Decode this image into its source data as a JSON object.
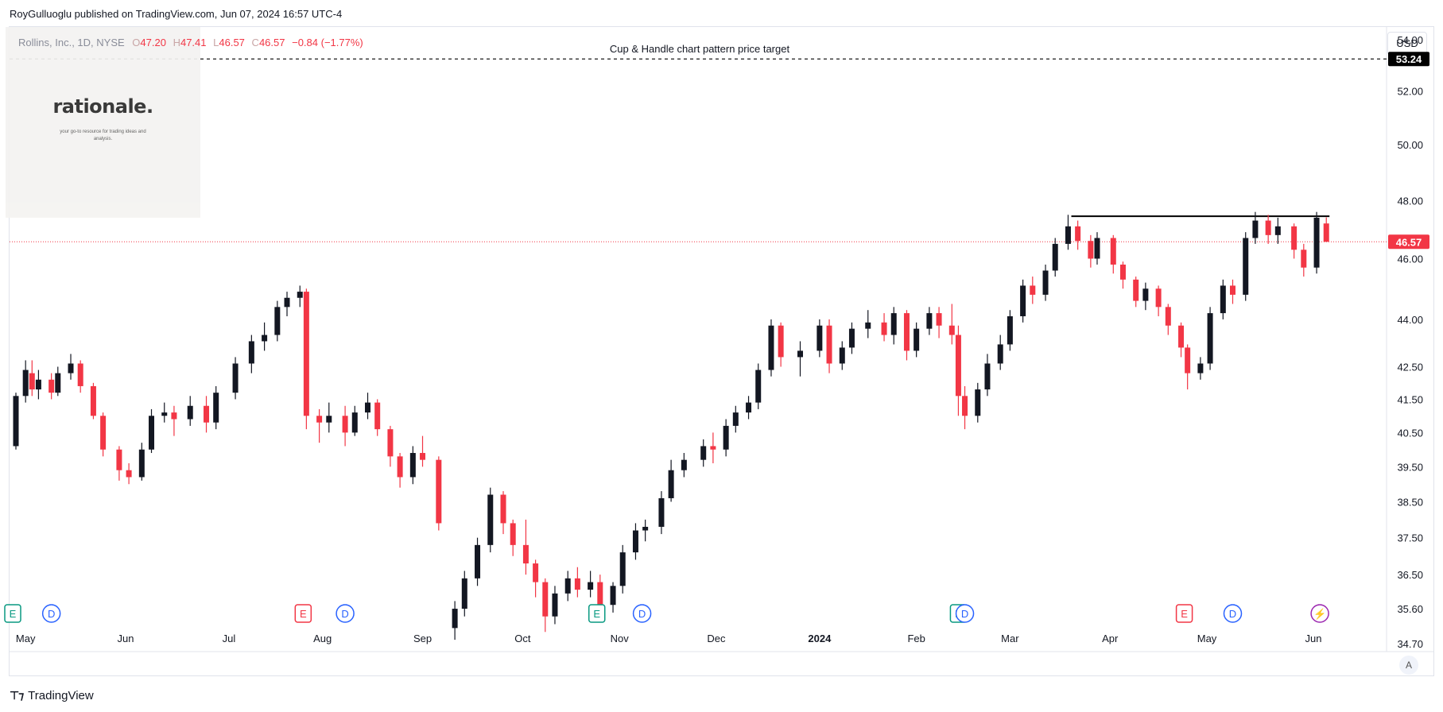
{
  "header": {
    "published_by": "RoyGulluoglu published on TradingView.com, Jun 07, 2024 16:57 UTC-4"
  },
  "legend": {
    "symbol": "Rollins, Inc., 1D, NYSE",
    "open_label": "O",
    "open": "47.20",
    "high_label": "H",
    "high": "47.41",
    "low_label": "L",
    "low": "46.57",
    "close_label": "C",
    "close": "46.57",
    "change": "−0.84 (−1.77%)"
  },
  "logo": {
    "word": "rationale.",
    "tagline": "your go-to resource for trading ideas and analysis."
  },
  "currency": "USD",
  "auto_label": "A",
  "footer": {
    "brand": "TradingView"
  },
  "colors": {
    "up": "#131722",
    "down": "#f23645",
    "price_line": "#f23645",
    "target_label_bg": "#000000"
  },
  "chart_data": {
    "type": "candlestick",
    "title": "Rollins, Inc., 1D, NYSE",
    "ylabel": "USD",
    "y_scale": "log",
    "ylim": [
      34.5,
      54.5
    ],
    "y_ticks": [
      "54.00",
      "52.00",
      "50.00",
      "48.00",
      "46.00",
      "44.00",
      "42.50",
      "41.50",
      "40.50",
      "39.50",
      "38.50",
      "37.50",
      "36.50",
      "35.60",
      "34.70"
    ],
    "x_labels": [
      "May",
      "Jun",
      "Jul",
      "Aug",
      "Sep",
      "Oct",
      "Nov",
      "Dec",
      "2024",
      "Feb",
      "Mar",
      "Apr",
      "May",
      "Jun"
    ],
    "x_label_dates": [
      "2023-05-01",
      "2023-06-01",
      "2023-07-03",
      "2023-08-01",
      "2023-09-01",
      "2023-10-02",
      "2023-11-01",
      "2023-12-01",
      "2024-01-02",
      "2024-02-01",
      "2024-03-01",
      "2024-04-01",
      "2024-05-01",
      "2024-06-03"
    ],
    "x_range": [
      "2023-04-28",
      "2024-06-20"
    ],
    "annotations": [
      {
        "type": "horizontal_line",
        "label": "Cup & Handle chart pattern price target",
        "value": 53.24,
        "style": "dashed"
      },
      {
        "type": "segment",
        "label": "",
        "value": 47.45,
        "from": "2024-03-20",
        "to": "2024-06-07"
      }
    ],
    "price_labels": [
      {
        "value": 53.24,
        "text": "53.24"
      },
      {
        "value": 46.57,
        "text": "46.57"
      }
    ],
    "event_markers": [
      {
        "kind": "E",
        "date": "2023-04-27",
        "color": "#089981"
      },
      {
        "kind": "D",
        "date": "2023-05-09",
        "color": "#2962ff"
      },
      {
        "kind": "E",
        "date": "2023-07-26",
        "color": "#f23645"
      },
      {
        "kind": "D",
        "date": "2023-08-08",
        "color": "#2962ff"
      },
      {
        "kind": "E",
        "date": "2023-10-25",
        "color": "#089981"
      },
      {
        "kind": "D",
        "date": "2023-11-08",
        "color": "#2962ff"
      },
      {
        "kind": "E",
        "date": "2024-02-14",
        "color": "#089981"
      },
      {
        "kind": "D",
        "date": "2024-02-16",
        "color": "#2962ff"
      },
      {
        "kind": "E",
        "date": "2024-04-24",
        "color": "#f23645"
      },
      {
        "kind": "D",
        "date": "2024-05-09",
        "color": "#2962ff"
      },
      {
        "kind": "⚡",
        "date": "2024-06-05",
        "color": "#9c27b0"
      }
    ],
    "series": [
      {
        "name": "Rollins, Inc.",
        "type": "candlestick",
        "columns": [
          "date",
          "open",
          "high",
          "low",
          "close"
        ],
        "values": [
          [
            "2023-04-28",
            40.1,
            41.7,
            40.0,
            41.6
          ],
          [
            "2023-05-01",
            41.6,
            42.7,
            41.4,
            42.4
          ],
          [
            "2023-05-03",
            42.3,
            42.7,
            41.6,
            41.8
          ],
          [
            "2023-05-05",
            41.8,
            42.4,
            41.5,
            42.1
          ],
          [
            "2023-05-09",
            42.1,
            42.3,
            41.5,
            41.7
          ],
          [
            "2023-05-11",
            41.7,
            42.5,
            41.6,
            42.3
          ],
          [
            "2023-05-15",
            42.3,
            42.9,
            42.1,
            42.6
          ],
          [
            "2023-05-18",
            42.6,
            42.7,
            41.7,
            41.9
          ],
          [
            "2023-05-22",
            41.9,
            42.0,
            40.9,
            41.0
          ],
          [
            "2023-05-25",
            41.0,
            41.1,
            39.8,
            40.0
          ],
          [
            "2023-05-30",
            40.0,
            40.1,
            39.1,
            39.4
          ],
          [
            "2023-06-02",
            39.4,
            39.6,
            39.0,
            39.2
          ],
          [
            "2023-06-06",
            39.2,
            40.2,
            39.1,
            40.0
          ],
          [
            "2023-06-09",
            40.0,
            41.2,
            39.9,
            41.0
          ],
          [
            "2023-06-13",
            41.0,
            41.4,
            40.8,
            41.1
          ],
          [
            "2023-06-16",
            41.1,
            41.3,
            40.4,
            40.9
          ],
          [
            "2023-06-21",
            40.9,
            41.6,
            40.7,
            41.3
          ],
          [
            "2023-06-26",
            41.3,
            41.6,
            40.5,
            40.8
          ],
          [
            "2023-06-29",
            40.8,
            41.9,
            40.6,
            41.7
          ],
          [
            "2023-07-05",
            41.7,
            42.8,
            41.5,
            42.6
          ],
          [
            "2023-07-10",
            42.6,
            43.5,
            42.3,
            43.3
          ],
          [
            "2023-07-14",
            43.3,
            43.9,
            43.0,
            43.5
          ],
          [
            "2023-07-18",
            43.5,
            44.6,
            43.3,
            44.4
          ],
          [
            "2023-07-21",
            44.4,
            44.9,
            44.1,
            44.7
          ],
          [
            "2023-07-25",
            44.7,
            45.1,
            44.4,
            44.9
          ],
          [
            "2023-07-27",
            44.9,
            45.0,
            40.6,
            41.0
          ],
          [
            "2023-07-31",
            41.0,
            41.2,
            40.2,
            40.8
          ],
          [
            "2023-08-03",
            40.8,
            41.4,
            40.5,
            41.0
          ],
          [
            "2023-08-08",
            41.0,
            41.3,
            40.1,
            40.5
          ],
          [
            "2023-08-11",
            40.5,
            41.3,
            40.4,
            41.1
          ],
          [
            "2023-08-15",
            41.1,
            41.7,
            40.9,
            41.4
          ],
          [
            "2023-08-18",
            41.4,
            41.5,
            40.4,
            40.6
          ],
          [
            "2023-08-22",
            40.6,
            40.7,
            39.5,
            39.8
          ],
          [
            "2023-08-25",
            39.8,
            39.9,
            38.9,
            39.2
          ],
          [
            "2023-08-29",
            39.2,
            40.1,
            39.0,
            39.9
          ],
          [
            "2023-09-01",
            39.9,
            40.4,
            39.5,
            39.7
          ],
          [
            "2023-09-06",
            39.7,
            39.8,
            37.7,
            37.9
          ],
          [
            "2023-09-11",
            35.1,
            35.8,
            34.8,
            35.6
          ],
          [
            "2023-09-14",
            35.6,
            36.6,
            35.4,
            36.4
          ],
          [
            "2023-09-18",
            36.4,
            37.5,
            36.2,
            37.3
          ],
          [
            "2023-09-22",
            37.3,
            38.9,
            37.1,
            38.7
          ],
          [
            "2023-09-26",
            38.7,
            38.8,
            37.6,
            37.9
          ],
          [
            "2023-09-29",
            37.9,
            38.0,
            37.0,
            37.3
          ],
          [
            "2023-10-03",
            37.3,
            38.0,
            36.5,
            36.8
          ],
          [
            "2023-10-06",
            36.8,
            36.9,
            35.9,
            36.3
          ],
          [
            "2023-10-09",
            36.3,
            36.4,
            35.0,
            35.4
          ],
          [
            "2023-10-12",
            35.4,
            36.2,
            35.2,
            36.0
          ],
          [
            "2023-10-16",
            36.0,
            36.6,
            35.8,
            36.4
          ],
          [
            "2023-10-19",
            36.4,
            36.7,
            35.9,
            36.1
          ],
          [
            "2023-10-23",
            36.1,
            36.6,
            35.9,
            36.3
          ],
          [
            "2023-10-26",
            36.3,
            36.5,
            35.5,
            35.7
          ],
          [
            "2023-10-30",
            35.7,
            36.3,
            35.5,
            36.2
          ],
          [
            "2023-11-02",
            36.2,
            37.3,
            36.0,
            37.1
          ],
          [
            "2023-11-06",
            37.1,
            37.9,
            36.9,
            37.7
          ],
          [
            "2023-11-09",
            37.7,
            38.0,
            37.4,
            37.8
          ],
          [
            "2023-11-14",
            37.8,
            38.8,
            37.6,
            38.6
          ],
          [
            "2023-11-17",
            38.6,
            39.7,
            38.5,
            39.4
          ],
          [
            "2023-11-21",
            39.4,
            39.9,
            39.2,
            39.7
          ],
          [
            "2023-11-27",
            39.7,
            40.3,
            39.5,
            40.1
          ],
          [
            "2023-11-30",
            40.1,
            40.5,
            39.6,
            40.0
          ],
          [
            "2023-12-04",
            40.0,
            40.9,
            39.8,
            40.7
          ],
          [
            "2023-12-07",
            40.7,
            41.3,
            40.5,
            41.1
          ],
          [
            "2023-12-11",
            41.1,
            41.6,
            40.9,
            41.4
          ],
          [
            "2023-12-14",
            41.4,
            42.6,
            41.2,
            42.4
          ],
          [
            "2023-12-18",
            42.4,
            44.0,
            42.2,
            43.8
          ],
          [
            "2023-12-21",
            43.8,
            43.9,
            42.5,
            42.8
          ],
          [
            "2023-12-27",
            42.8,
            43.3,
            42.2,
            43.0
          ],
          [
            "2024-01-02",
            43.0,
            44.0,
            42.8,
            43.8
          ],
          [
            "2024-01-05",
            43.8,
            44.0,
            42.3,
            42.6
          ],
          [
            "2024-01-09",
            42.6,
            43.3,
            42.4,
            43.1
          ],
          [
            "2024-01-12",
            43.1,
            43.9,
            42.9,
            43.7
          ],
          [
            "2024-01-17",
            43.7,
            44.3,
            43.4,
            43.9
          ],
          [
            "2024-01-22",
            43.9,
            44.2,
            43.3,
            43.5
          ],
          [
            "2024-01-25",
            43.5,
            44.4,
            43.2,
            44.2
          ],
          [
            "2024-01-29",
            44.2,
            44.3,
            42.7,
            43.0
          ],
          [
            "2024-02-01",
            43.0,
            43.9,
            42.8,
            43.7
          ],
          [
            "2024-02-05",
            43.7,
            44.4,
            43.5,
            44.2
          ],
          [
            "2024-02-08",
            44.2,
            44.4,
            43.4,
            43.8
          ],
          [
            "2024-02-12",
            43.8,
            44.5,
            43.2,
            43.5
          ],
          [
            "2024-02-14",
            43.5,
            43.8,
            41.0,
            41.6
          ],
          [
            "2024-02-16",
            41.6,
            41.9,
            40.6,
            41.0
          ],
          [
            "2024-02-20",
            41.0,
            42.0,
            40.8,
            41.8
          ],
          [
            "2024-02-23",
            41.8,
            42.9,
            41.6,
            42.6
          ],
          [
            "2024-02-27",
            42.6,
            43.5,
            42.4,
            43.2
          ],
          [
            "2024-03-01",
            43.2,
            44.3,
            43.0,
            44.1
          ],
          [
            "2024-03-05",
            44.1,
            45.3,
            43.9,
            45.1
          ],
          [
            "2024-03-08",
            45.1,
            45.4,
            44.5,
            44.8
          ],
          [
            "2024-03-12",
            44.8,
            45.8,
            44.6,
            45.6
          ],
          [
            "2024-03-15",
            45.6,
            46.7,
            45.4,
            46.5
          ],
          [
            "2024-03-19",
            46.5,
            47.5,
            46.3,
            47.1
          ],
          [
            "2024-03-22",
            47.1,
            47.3,
            46.3,
            46.6
          ],
          [
            "2024-03-26",
            46.6,
            46.8,
            45.7,
            46.0
          ],
          [
            "2024-03-28",
            46.0,
            46.9,
            45.8,
            46.7
          ],
          [
            "2024-04-02",
            46.7,
            46.8,
            45.5,
            45.8
          ],
          [
            "2024-04-05",
            45.8,
            45.9,
            45.0,
            45.3
          ],
          [
            "2024-04-09",
            45.3,
            45.4,
            44.4,
            44.6
          ],
          [
            "2024-04-12",
            44.6,
            45.2,
            44.3,
            45.0
          ],
          [
            "2024-04-16",
            45.0,
            45.1,
            44.1,
            44.4
          ],
          [
            "2024-04-19",
            44.4,
            44.5,
            43.5,
            43.8
          ],
          [
            "2024-04-23",
            43.8,
            43.9,
            42.8,
            43.1
          ],
          [
            "2024-04-25",
            43.1,
            43.2,
            41.8,
            42.3
          ],
          [
            "2024-04-29",
            42.3,
            42.8,
            42.1,
            42.6
          ],
          [
            "2024-05-02",
            42.6,
            44.4,
            42.4,
            44.2
          ],
          [
            "2024-05-06",
            44.2,
            45.3,
            44.0,
            45.1
          ],
          [
            "2024-05-09",
            45.1,
            45.3,
            44.5,
            44.8
          ],
          [
            "2024-05-13",
            44.8,
            46.9,
            44.6,
            46.7
          ],
          [
            "2024-05-16",
            46.7,
            47.6,
            46.5,
            47.3
          ],
          [
            "2024-05-20",
            47.3,
            47.5,
            46.5,
            46.8
          ],
          [
            "2024-05-23",
            46.8,
            47.4,
            46.5,
            47.1
          ],
          [
            "2024-05-28",
            47.1,
            47.2,
            46.0,
            46.3
          ],
          [
            "2024-05-31",
            46.3,
            46.5,
            45.4,
            45.7
          ],
          [
            "2024-06-04",
            45.7,
            47.6,
            45.5,
            47.4
          ],
          [
            "2024-06-07",
            47.2,
            47.41,
            46.57,
            46.57
          ]
        ]
      }
    ]
  }
}
